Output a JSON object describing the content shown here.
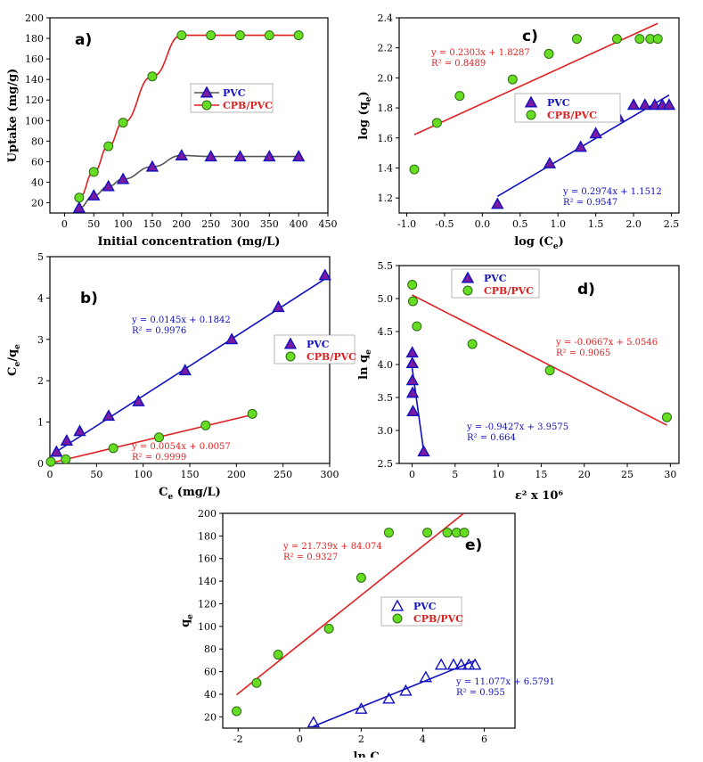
{
  "colors": {
    "pvc": "#1010c0",
    "cpb": "#e02020",
    "marker_fill": "#7a1aa0",
    "green": "#66dd22",
    "axis": "#000000"
  },
  "chart_data": [
    {
      "id": "a",
      "type": "line",
      "panel_label": "a)",
      "xlabel": "Initial concentration (mg/L)",
      "ylabel": "Uptake (mg/g)",
      "xlim": [
        -25,
        450
      ],
      "ylim": [
        10,
        200
      ],
      "xticks": [
        0,
        50,
        100,
        150,
        200,
        250,
        300,
        350,
        400,
        450
      ],
      "yticks": [
        20,
        40,
        60,
        80,
        100,
        120,
        140,
        160,
        180,
        200
      ],
      "legend": [
        "PVC",
        "CPB/PVC"
      ],
      "series": [
        {
          "name": "PVC",
          "x": [
            25,
            50,
            75,
            100,
            150,
            200,
            250,
            300,
            350,
            400
          ],
          "y": [
            15,
            27,
            36,
            43,
            55,
            66,
            65,
            65,
            65,
            65
          ]
        },
        {
          "name": "CPB/PVC",
          "x": [
            25,
            50,
            75,
            100,
            150,
            200,
            250,
            300,
            350,
            400
          ],
          "y": [
            25,
            50,
            75,
            98,
            143,
            183,
            183,
            183,
            183,
            183
          ]
        }
      ]
    },
    {
      "id": "b",
      "type": "scatter",
      "panel_label": "b)",
      "xlabel_main": "C",
      "xlabel_sub": "e",
      "xlabel_rest": " (mg/L)",
      "ylabel": "C/q",
      "xlim": [
        0,
        300
      ],
      "ylim": [
        0,
        5
      ],
      "xticks": [
        0,
        50,
        100,
        150,
        200,
        250,
        300
      ],
      "yticks": [
        0,
        1,
        2,
        3,
        4,
        5
      ],
      "legend": [
        "PVC",
        "CPB/PVC"
      ],
      "series": [
        {
          "name": "PVC",
          "x": [
            7,
            18,
            32,
            63,
            95,
            145,
            195,
            245,
            295
          ],
          "y": [
            0.28,
            0.55,
            0.78,
            1.15,
            1.5,
            2.25,
            3.0,
            3.78,
            4.55
          ],
          "fit": {
            "slope": 0.0145,
            "intercept": 0.1842,
            "eq": "y = 0.0145x + 0.1842",
            "r2": "R² = 0.9976"
          }
        },
        {
          "name": "CPB/PVC",
          "x": [
            1,
            17,
            68,
            117,
            167,
            217
          ],
          "y": [
            0.04,
            0.1,
            0.37,
            0.63,
            0.92,
            1.2
          ],
          "fit": {
            "slope": 0.0054,
            "intercept": 0.0057,
            "eq": "y = 0.0054x + 0.0057",
            "r2": "R² = 0.9999"
          }
        }
      ]
    },
    {
      "id": "c",
      "type": "scatter",
      "panel_label": "c)",
      "xlabel": "log (C",
      "xlabel_sub": "e",
      "xlabel_end": ")",
      "ylabel": "log (q",
      "xlim": [
        -1.1,
        2.6
      ],
      "ylim": [
        1.1,
        2.4
      ],
      "xticks": [
        -1.0,
        -0.5,
        0.0,
        0.5,
        1.0,
        1.5,
        2.0,
        2.5
      ],
      "yticks": [
        1.2,
        1.4,
        1.6,
        1.8,
        2.0,
        2.2,
        2.4
      ],
      "xtick_labels": [
        "-1.0",
        "-0.5",
        "0.0",
        "0.5",
        "1.0",
        "1.5",
        "2.0",
        "2.5"
      ],
      "ytick_labels": [
        "1.2",
        "1.4",
        "1.6",
        "1.8",
        "2.0",
        "2.2",
        "2.4"
      ],
      "legend": [
        "PVC",
        "CPB/PVC"
      ],
      "series": [
        {
          "name": "PVC",
          "x": [
            0.2,
            0.89,
            1.3,
            1.5,
            1.8,
            2.0,
            2.15,
            2.28,
            2.38,
            2.47
          ],
          "y": [
            1.16,
            1.43,
            1.54,
            1.63,
            1.74,
            1.82,
            1.82,
            1.82,
            1.82,
            1.82
          ],
          "fit": {
            "slope": 0.2974,
            "intercept": 1.1512,
            "x_range": [
              0.2,
              2.47
            ],
            "eq": "y = 0.2974x + 1.1512",
            "r2": "R² = 0.9547"
          }
        },
        {
          "name": "CPB/PVC",
          "x": [
            -0.9,
            -0.6,
            -0.3,
            0.4,
            0.88,
            1.25,
            1.78,
            2.08,
            2.22,
            2.32
          ],
          "y": [
            1.39,
            1.7,
            1.88,
            1.99,
            2.16,
            2.26,
            2.26,
            2.26,
            2.26,
            2.26
          ],
          "fit": {
            "slope": 0.2303,
            "intercept": 1.8287,
            "x_range": [
              -0.9,
              2.32
            ],
            "eq": "y = 0.2303x + 1.8287",
            "r2": "R² = 0.8489"
          }
        }
      ]
    },
    {
      "id": "d",
      "type": "scatter",
      "panel_label": "d)",
      "xlabel": "ε² x 10⁶",
      "ylabel": "ln q",
      "xlim": [
        -1.5,
        31
      ],
      "ylim": [
        2.5,
        5.5
      ],
      "xticks": [
        0,
        5,
        10,
        15,
        20,
        25,
        30
      ],
      "yticks": [
        2.5,
        3.0,
        3.5,
        4.0,
        4.5,
        5.0,
        5.5
      ],
      "ytick_labels": [
        "2.5",
        "3.0",
        "3.5",
        "4.0",
        "4.5",
        "5.0",
        "5.5"
      ],
      "legend": [
        "PVC",
        "CPB/PVC"
      ],
      "series": [
        {
          "name": "PVC",
          "x": [
            0.02,
            0.03,
            0.04,
            0.06,
            0.1,
            1.35
          ],
          "y": [
            4.18,
            4.02,
            3.76,
            3.57,
            3.29,
            2.68
          ],
          "fit": {
            "slope": -0.9427,
            "intercept": 3.9575,
            "x_range": [
              0.0,
              1.35
            ],
            "eq": "y = -0.9427x + 3.9575",
            "r2": "R² = 0.664"
          }
        },
        {
          "name": "CPB/PVC",
          "x": [
            0.02,
            0.1,
            0.55,
            7.0,
            16.0,
            29.6
          ],
          "y": [
            5.21,
            4.96,
            4.58,
            4.31,
            3.91,
            3.2
          ],
          "fit": {
            "slope": -0.0667,
            "intercept": 5.0546,
            "x_range": [
              0.0,
              29.6
            ],
            "eq": "y = -0.0667x + 5.0546",
            "r2": "R² = 0.9065"
          }
        }
      ]
    },
    {
      "id": "e",
      "type": "scatter",
      "panel_label": "e)",
      "xlabel": "ln C",
      "xlabel_sub": "e",
      "ylabel": "q",
      "xlim": [
        -2.5,
        7
      ],
      "ylim": [
        10,
        200
      ],
      "xticks": [
        -2,
        0,
        2,
        4,
        6
      ],
      "yticks": [
        20,
        40,
        60,
        80,
        100,
        120,
        140,
        160,
        180,
        200
      ],
      "legend": [
        "PVC",
        "CPB/PVC"
      ],
      "series": [
        {
          "name": "PVC",
          "x": [
            0.45,
            2.0,
            2.9,
            3.45,
            4.1,
            4.6,
            5.0,
            5.25,
            5.5,
            5.7
          ],
          "y": [
            15,
            27,
            36,
            43,
            55,
            66,
            66,
            66,
            66,
            66
          ],
          "fit": {
            "slope": 11.077,
            "intercept": 6.5791,
            "x_range": [
              0.45,
              5.7
            ],
            "eq": "y = 11.077x + 6.5791",
            "r2": "R² = 0.955"
          }
        },
        {
          "name": "CPB/PVC",
          "x": [
            -2.05,
            -1.4,
            -0.7,
            0.95,
            2.0,
            2.9,
            4.15,
            4.8,
            5.1,
            5.35
          ],
          "y": [
            25,
            50,
            75,
            98,
            143,
            183,
            183,
            183,
            183,
            183
          ],
          "fit": {
            "slope": 21.739,
            "intercept": 84.074,
            "x_range": [
              -2.05,
              5.35
            ],
            "eq": "y = 21.739x + 84.074",
            "r2": "R² = 0.9327"
          }
        }
      ]
    }
  ]
}
